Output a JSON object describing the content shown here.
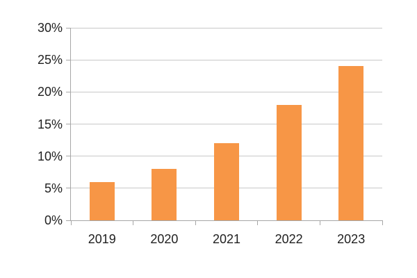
{
  "page": {
    "background": "#FFFFFF"
  },
  "chart_data": {
    "type": "bar",
    "title": "",
    "xlabel": "",
    "ylabel": "",
    "categories": [
      "2019",
      "2020",
      "2021",
      "2022",
      "2023"
    ],
    "values": [
      6,
      8,
      12,
      18,
      24
    ],
    "unit": "%",
    "ylim": [
      0,
      30
    ],
    "ytick_step": 5,
    "ytick_labels": [
      "0%",
      "5%",
      "10%",
      "15%",
      "20%",
      "25%",
      "30%"
    ],
    "grid": "horizontal-only",
    "legend": "none",
    "colors": {
      "bar": "#F79646",
      "gridline": "#C8C8C8",
      "axis": "#A6A6A6",
      "label_text": "#1F1F1F",
      "background": "#FFFFFF"
    }
  }
}
